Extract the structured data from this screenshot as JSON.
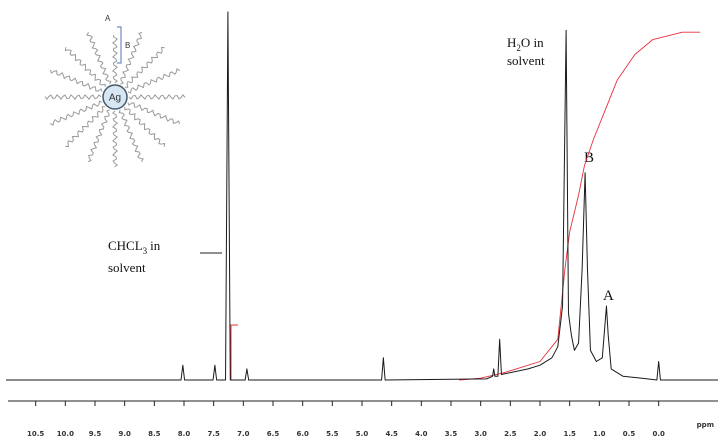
{
  "chart_data": {
    "type": "line",
    "xlabel": "ppm",
    "color": "#1a1a1a",
    "x": [
      11.0,
      8.05,
      8.02,
      7.99,
      7.51,
      7.48,
      7.45,
      7.3,
      7.26,
      7.22,
      6.97,
      6.94,
      6.91,
      4.67,
      4.64,
      4.61,
      2.9,
      2.8,
      2.78,
      2.76,
      2.71,
      2.68,
      2.65,
      2.2,
      2.0,
      1.8,
      1.7,
      1.62,
      1.56,
      1.52,
      1.47,
      1.42,
      1.35,
      1.29,
      1.24,
      1.2,
      1.15,
      1.05,
      0.95,
      0.88,
      0.85,
      0.8,
      0.6,
      0.3,
      0.03,
      0.0,
      -0.03,
      -1.0
    ],
    "values": [
      0,
      0,
      4,
      0,
      0,
      4,
      0,
      0,
      99.5,
      0,
      0,
      3,
      0,
      0,
      6,
      0,
      0.3,
      1,
      3,
      1,
      1,
      11,
      1.5,
      3,
      4,
      6,
      9,
      20,
      94.5,
      18,
      12,
      8,
      10,
      30,
      56,
      30,
      8,
      5,
      6,
      20,
      12,
      3,
      1,
      0.5,
      0,
      5,
      0,
      0
    ],
    "integral": {
      "color": "#e8303a",
      "x": [
        3.36,
        3.0,
        2.6,
        2.0,
        1.7,
        1.58,
        1.5,
        1.35,
        1.25,
        1.1,
        0.9,
        0.7,
        0.4,
        0.1,
        -0.4,
        -0.7
      ],
      "values": [
        0,
        0.5,
        2,
        5,
        11,
        30,
        40,
        50,
        58,
        65,
        73,
        81,
        88,
        92,
        94,
        94
      ]
    },
    "xlim": [
      11,
      -1
    ],
    "ylim": [
      0,
      100
    ],
    "xticks": [
      10.5,
      {
        "value": 10,
        "label": "10.0"
      },
      9.5,
      {
        "value": 9,
        "label": "9.0"
      },
      8.5,
      {
        "value": 8,
        "label": "8.0"
      },
      7.5,
      {
        "value": 7,
        "label": "7.0"
      },
      6.5,
      {
        "value": 6,
        "label": "6.0"
      },
      5.5,
      {
        "value": 5,
        "label": "5.0"
      },
      4.5,
      {
        "value": 4,
        "label": "4.0"
      },
      3.5,
      {
        "value": 3,
        "label": "3.0"
      },
      2.5,
      {
        "value": 2,
        "label": "2.0"
      },
      1.5,
      {
        "value": 1,
        "label": "1.0"
      },
      0.5,
      {
        "value": 0,
        "label": "0.0"
      }
    ],
    "annotations": {
      "h2o": [
        "H",
        "2",
        "O in",
        "solvent"
      ],
      "chcl3": [
        "CHCL",
        "3",
        "in",
        "solvent"
      ],
      "b": "B",
      "a": "A"
    },
    "inset": {
      "center_label": "Ag",
      "end_label": "A",
      "segment_label": "B"
    }
  }
}
